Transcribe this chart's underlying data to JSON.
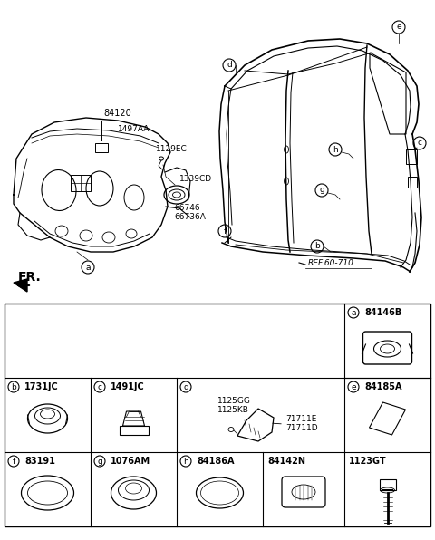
{
  "bg_color": "#ffffff",
  "line_color": "#000000",
  "text_color": "#000000",
  "parts": {
    "a": "84146B",
    "b": "1731JC",
    "c": "1491JC",
    "d_1": "1125GG",
    "d_2": "1125KB",
    "d_3": "71711E",
    "d_4": "71711D",
    "e": "84185A",
    "f": "83191",
    "g": "1076AM",
    "h": "84186A",
    "h2": "84142N",
    "h3": "1123GT"
  }
}
